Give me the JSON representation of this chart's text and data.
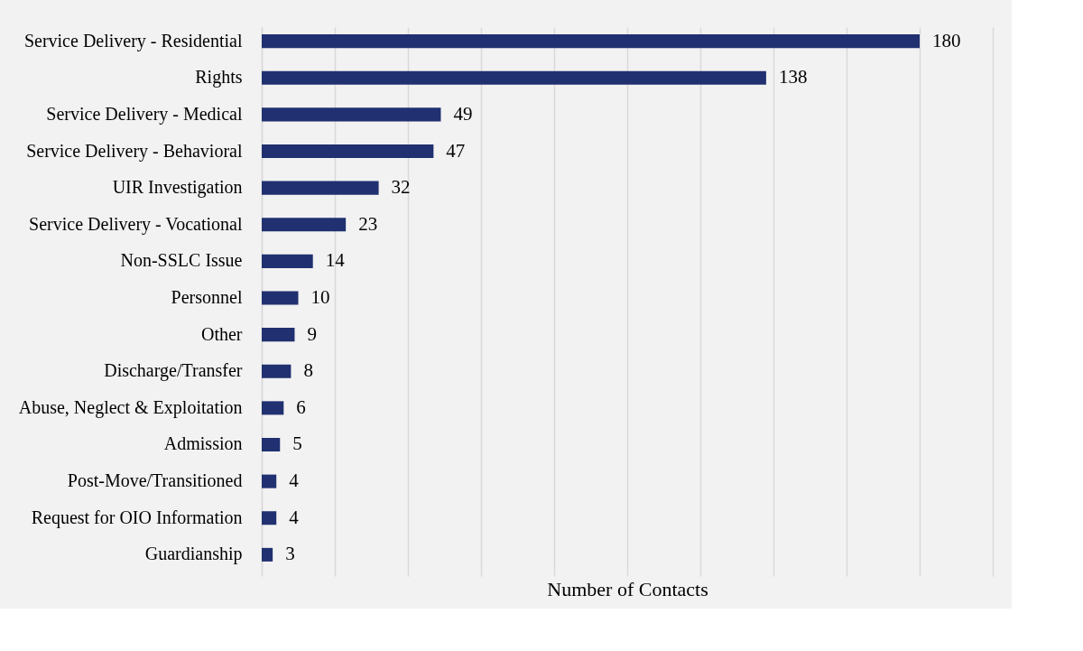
{
  "chart_data": {
    "type": "bar",
    "orientation": "horizontal",
    "xlabel": "Number of Contacts",
    "categories": [
      "Service Delivery - Residential",
      "Rights",
      "Service Delivery - Medical",
      "Service Delivery - Behavioral",
      "UIR Investigation",
      "Service Delivery - Vocational",
      "Non-SSLC Issue",
      "Personnel",
      "Other",
      "Discharge/Transfer",
      "Abuse, Neglect & Exploitation",
      "Admission",
      "Post-Move/Transitioned",
      "Request for OIO Information",
      "Guardianship"
    ],
    "values": [
      180,
      138,
      49,
      47,
      32,
      23,
      14,
      10,
      9,
      8,
      6,
      5,
      4,
      4,
      3
    ],
    "color": "#203070",
    "xlim": [
      0,
      200
    ],
    "xticks": [
      {
        "value": 0,
        "label": null
      },
      {
        "value": 20,
        "label": null
      },
      {
        "value": 40,
        "label": null
      },
      {
        "value": 60,
        "label": null
      },
      {
        "value": 80,
        "label": null
      },
      {
        "value": 100,
        "label": null
      },
      {
        "value": 120,
        "label": null
      },
      {
        "value": 140,
        "label": null
      },
      {
        "value": 160,
        "label": null
      },
      {
        "value": 180,
        "label": null
      },
      {
        "value": 200,
        "label": null
      }
    ],
    "tick_labels": "y",
    "grid": "x",
    "data_labels": true
  }
}
